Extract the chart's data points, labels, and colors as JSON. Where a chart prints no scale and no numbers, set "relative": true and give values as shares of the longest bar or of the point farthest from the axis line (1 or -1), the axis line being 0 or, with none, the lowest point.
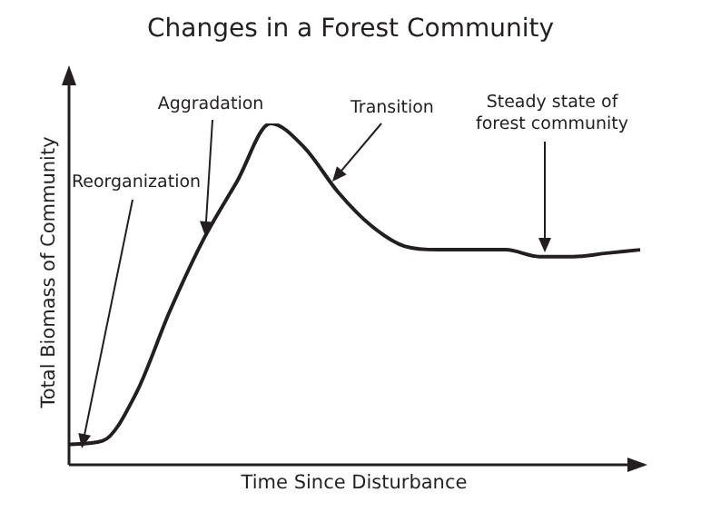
{
  "chart_data": {
    "type": "line",
    "title": "Changes in a Forest Community",
    "xlabel": "Time Since Disturbance",
    "ylabel": "Total Biomass of Community",
    "relative": true,
    "categories": [
      null,
      null,
      null,
      null,
      null,
      null,
      null,
      null,
      null,
      null,
      null,
      null,
      null,
      null,
      null,
      null,
      null,
      null
    ],
    "series": [
      {
        "color": "#231f20",
        "values": [
          0.06,
          0.07,
          0.21,
          0.45,
          0.66,
          0.83,
          1,
          0.93,
          0.8,
          0.7,
          0.64,
          0.63,
          0.63,
          0.63,
          0.61,
          0.61,
          0.62,
          0.63
        ]
      }
    ],
    "annotations": [
      "Reorganization",
      "Aggradation",
      "Transition",
      "Steady state of forest community"
    ]
  }
}
